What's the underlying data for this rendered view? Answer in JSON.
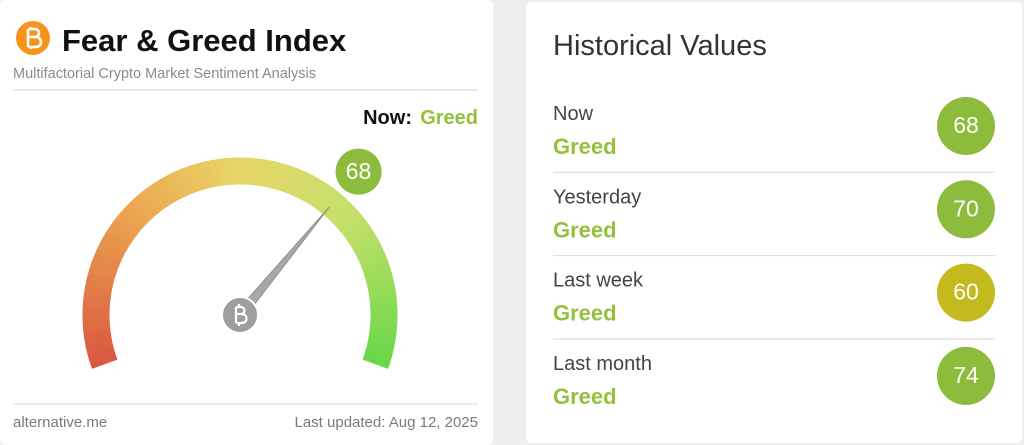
{
  "header": {
    "title": "Fear & Greed Index",
    "subtitle": "Multifactorial Crypto Market Sentiment Analysis"
  },
  "now": {
    "label": "Now:",
    "status": "Greed"
  },
  "gauge": {
    "value": 68,
    "range": [
      0,
      100
    ],
    "color": "#8dbb3c"
  },
  "footer": {
    "source": "alternative.me",
    "updated": "Last updated: Aug 12, 2025"
  },
  "history": {
    "title": "Historical Values",
    "rows": [
      {
        "label": "Now",
        "status": "Greed",
        "value": 68,
        "color": "#8dbb3c"
      },
      {
        "label": "Yesterday",
        "status": "Greed",
        "value": 70,
        "color": "#8dbb3c"
      },
      {
        "label": "Last week",
        "status": "Greed",
        "value": 60,
        "color": "#c4b91d"
      },
      {
        "label": "Last month",
        "status": "Greed",
        "value": 74,
        "color": "#8dbb3c"
      }
    ]
  }
}
